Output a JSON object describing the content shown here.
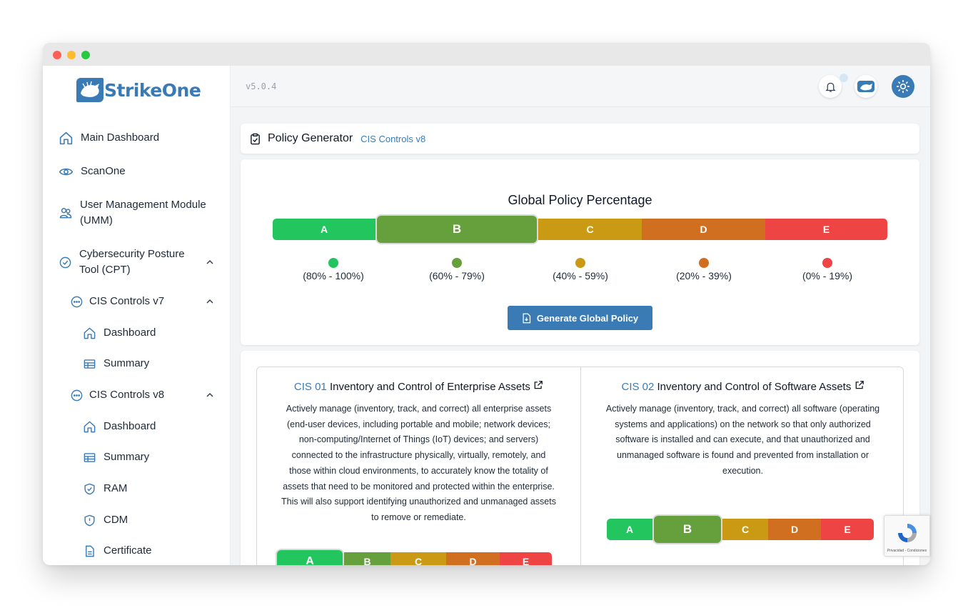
{
  "app": {
    "logo_text": "StrikeOne",
    "version": "v5.0.4"
  },
  "sidebar": {
    "items": [
      {
        "label": "Main Dashboard",
        "icon": "home-icon"
      },
      {
        "label": "ScanOne",
        "icon": "eye-icon"
      },
      {
        "label": "User Management Module",
        "label2": "(UMM)",
        "icon": "users-icon"
      },
      {
        "label": "Cybersecurity Posture",
        "label2": "Tool (CPT)",
        "icon": "check-circle-icon",
        "expanded": true
      }
    ],
    "cis_v7": {
      "label": "CIS Controls v7",
      "expanded": true,
      "children": [
        "Dashboard",
        "Summary"
      ]
    },
    "cis_v8": {
      "label": "CIS Controls v8",
      "expanded": true,
      "children": [
        "Dashboard",
        "Summary",
        "RAM",
        "CDM",
        "Certificate"
      ]
    }
  },
  "header": {
    "title": "Policy Generator",
    "subtitle": "CIS Controls v8"
  },
  "global_policy": {
    "title": "Global Policy Percentage",
    "selected_grade": "B",
    "grades": [
      {
        "label": "A",
        "range": "(80% - 100%)",
        "color": "#22c55e"
      },
      {
        "label": "B",
        "range": "(60% - 79%)",
        "color": "#65a03d"
      },
      {
        "label": "C",
        "range": "(40% - 59%)",
        "color": "#ca9a14"
      },
      {
        "label": "D",
        "range": "(20% - 39%)",
        "color": "#cf6f1f"
      },
      {
        "label": "E",
        "range": "(0% - 19%)",
        "color": "#ef4444"
      }
    ],
    "button_label": "Generate Global Policy"
  },
  "cis_controls": [
    {
      "number": "CIS 01",
      "title": "Inventory and Control of Enterprise Assets",
      "description_lines": [
        "Actively manage (inventory, track, and correct) all enterprise assets",
        "(end-user devices, including portable and mobile; network devices;",
        "non-computing/Internet of Things (IoT) devices; and servers)",
        "connected to the infrastructure physically, virtually, remotely, and",
        "those within cloud environments, to accurately know the totality of",
        "assets that need to be monitored and protected within the enterprise.",
        "This will also support identifying unauthorized and unmanaged assets",
        "to remove or remediate."
      ],
      "grade": "A"
    },
    {
      "number": "CIS 02",
      "title": "Inventory and Control of Software Assets",
      "description_lines": [
        "Actively manage (inventory, track, and correct) all software (operating",
        "systems and applications) on the network so that only authorized",
        "software is installed and can execute, and that unauthorized and",
        "unmanaged software is found and prevented from installation or",
        "execution."
      ],
      "grade": "B"
    }
  ],
  "recaptcha": {
    "text": "Privacidad - Condiciones"
  }
}
